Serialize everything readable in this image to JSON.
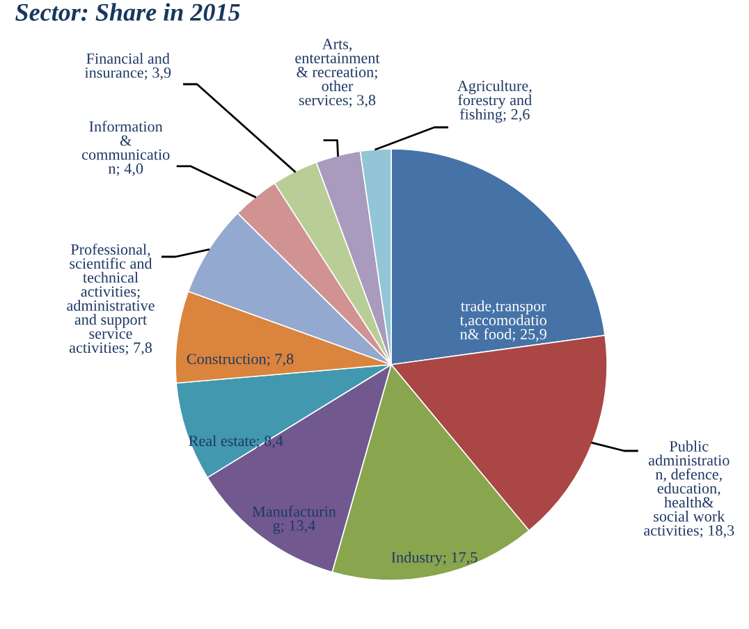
{
  "chart_data": {
    "type": "pie",
    "title": "Sector: Share in 2015",
    "categories": [
      "trade,transpor\nt,accomodatio\nn& food",
      "Public\nadministratio\nn, defence,\neducation,\nhealth&\nsocial work\nactivities",
      "Industry",
      "Manufacturin\ng",
      "Real estate",
      "Construction",
      "Professional,\nscientific and\ntechnical\nactivities;\nadministrative\nand support\nservice\nactivities",
      "Information\n&\ncommunicatio\nn",
      "Financial and\ninsurance",
      "Arts,\nentertainment\n& recreation;\nother\nservices",
      "Agriculture,\nforestry and\nfishing"
    ],
    "values": [
      25.9,
      18.3,
      17.5,
      13.4,
      8.4,
      7.8,
      7.8,
      4.0,
      3.9,
      3.8,
      2.6
    ],
    "value_labels": [
      "25,9",
      "18,3",
      "17,5",
      "13,4",
      "8,4",
      "7,8",
      "7,8",
      "4,0",
      "3,9",
      "3,8",
      "2,6"
    ],
    "colors": [
      "#4572a7",
      "#aa4643",
      "#89a54e",
      "#71588f",
      "#4198af",
      "#db843d",
      "#93a9cf",
      "#d19392",
      "#b9cd96",
      "#a99bbd",
      "#92c5d5"
    ]
  }
}
